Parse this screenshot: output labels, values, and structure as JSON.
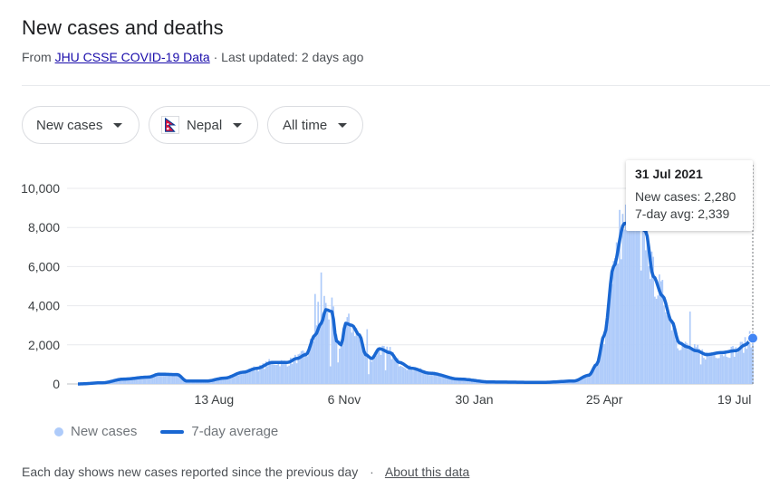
{
  "header": {
    "title": "New cases and deaths",
    "source_prefix": "From",
    "source_link": "JHU CSSE COVID-19 Data",
    "updated": "· Last updated: 2 days ago"
  },
  "filters": {
    "metric": "New cases",
    "country": "Nepal",
    "range": "All time"
  },
  "chart_data": {
    "type": "bar",
    "overlay_type": "line",
    "start_date": "2020-05-16",
    "end_date": "2021-07-31",
    "ylim": [
      0,
      10000
    ],
    "y_ticks": [
      0,
      2000,
      4000,
      6000,
      8000,
      10000
    ],
    "y_tick_labels": [
      "0",
      "2,000",
      "4,000",
      "6,000",
      "8,000",
      "10,000"
    ],
    "x_ticks": [
      {
        "date": "2020-08-13",
        "label": "13 Aug"
      },
      {
        "date": "2020-11-06",
        "label": "6 Nov"
      },
      {
        "date": "2021-01-30",
        "label": "30 Jan"
      },
      {
        "date": "2021-04-25",
        "label": "25 Apr"
      },
      {
        "date": "2021-07-19",
        "label": "19 Jul"
      }
    ],
    "avg_anchors": [
      [
        "2020-05-16",
        0
      ],
      [
        "2020-06-01",
        60
      ],
      [
        "2020-06-15",
        250
      ],
      [
        "2020-07-01",
        350
      ],
      [
        "2020-07-08",
        500
      ],
      [
        "2020-07-20",
        480
      ],
      [
        "2020-07-26",
        150
      ],
      [
        "2020-08-08",
        150
      ],
      [
        "2020-08-20",
        300
      ],
      [
        "2020-09-01",
        600
      ],
      [
        "2020-09-10",
        800
      ],
      [
        "2020-09-20",
        1100
      ],
      [
        "2020-09-30",
        1100
      ],
      [
        "2020-10-06",
        1300
      ],
      [
        "2020-10-12",
        1500
      ],
      [
        "2020-10-18",
        2500
      ],
      [
        "2020-10-22",
        3100
      ],
      [
        "2020-10-25",
        3800
      ],
      [
        "2020-10-29",
        3700
      ],
      [
        "2020-11-01",
        2200
      ],
      [
        "2020-11-04",
        2000
      ],
      [
        "2020-11-07",
        3100
      ],
      [
        "2020-11-11",
        3000
      ],
      [
        "2020-11-16",
        2500
      ],
      [
        "2020-11-20",
        1500
      ],
      [
        "2020-11-24",
        1300
      ],
      [
        "2020-11-29",
        1800
      ],
      [
        "2020-12-06",
        1600
      ],
      [
        "2020-12-12",
        1100
      ],
      [
        "2020-12-20",
        800
      ],
      [
        "2021-01-01",
        550
      ],
      [
        "2021-01-20",
        250
      ],
      [
        "2021-02-10",
        100
      ],
      [
        "2021-03-15",
        80
      ],
      [
        "2021-04-05",
        150
      ],
      [
        "2021-04-15",
        450
      ],
      [
        "2021-04-20",
        1000
      ],
      [
        "2021-04-25",
        2500
      ],
      [
        "2021-05-01",
        6000
      ],
      [
        "2021-05-08",
        8200
      ],
      [
        "2021-05-16",
        8500
      ],
      [
        "2021-05-22",
        7800
      ],
      [
        "2021-05-27",
        5500
      ],
      [
        "2021-06-02",
        4500
      ],
      [
        "2021-06-08",
        3200
      ],
      [
        "2021-06-13",
        2100
      ],
      [
        "2021-06-18",
        1900
      ],
      [
        "2021-06-24",
        1700
      ],
      [
        "2021-07-01",
        1500
      ],
      [
        "2021-07-10",
        1600
      ],
      [
        "2021-07-20",
        1700
      ],
      [
        "2021-07-26",
        2000
      ],
      [
        "2021-07-31",
        2339
      ]
    ],
    "spikes": [
      [
        "2020-10-22",
        5700
      ],
      [
        "2020-10-18",
        4600
      ],
      [
        "2020-10-20",
        4200
      ],
      [
        "2020-10-24",
        4500
      ],
      [
        "2020-11-21",
        2800
      ],
      [
        "2021-05-12",
        9300
      ],
      [
        "2021-05-05",
        8900
      ],
      [
        "2021-06-20",
        3700
      ],
      [
        "2021-06-05",
        3500
      ],
      [
        "2021-07-29",
        2700
      ]
    ],
    "dips": [
      [
        "2020-10-28",
        900
      ],
      [
        "2020-11-02",
        1100
      ],
      [
        "2020-11-22",
        500
      ],
      [
        "2020-12-03",
        700
      ],
      [
        "2021-05-19",
        5800
      ],
      [
        "2021-06-27",
        1000
      ]
    ],
    "highlight": {
      "date": "2021-07-31",
      "new_cases": 2280,
      "avg": 2339
    },
    "legend": [
      "New cases",
      "7-day average"
    ],
    "legend_position": "bottom-left",
    "colors": {
      "bars": "#aecbfa",
      "avg": "#1967d2",
      "grid": "#e8eaed",
      "axis": "#bdc1c6"
    }
  },
  "tooltip": {
    "date": "31 Jul 2021",
    "cases_label": "New cases:",
    "cases_value": "2,280",
    "avg_label": "7-day avg:",
    "avg_value": "2,339"
  },
  "legend": {
    "new_cases": "New cases",
    "avg": "7-day average"
  },
  "footer": {
    "note": "Each day shows new cases reported since the previous day",
    "separator": "·",
    "about": "About this data"
  }
}
